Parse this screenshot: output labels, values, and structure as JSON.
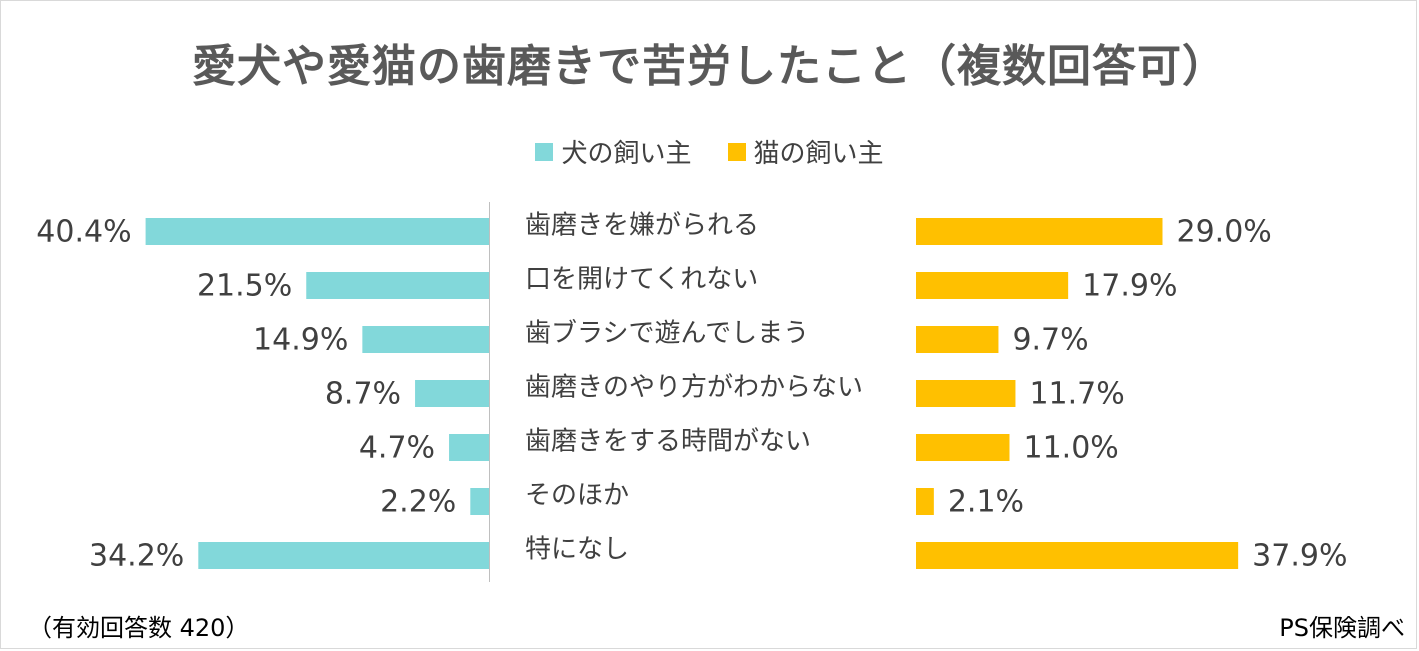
{
  "chart_data": {
    "type": "bar",
    "title": "愛犬や愛猫の歯磨きで苦労したこと（複数回答可）",
    "categories": [
      "歯磨きを嫌がられる",
      "口を開けてくれない",
      "歯ブラシで遊んでしまう",
      "歯磨きのやり方がわからない",
      "歯磨きをする時間がない",
      "そのほか",
      "特になし"
    ],
    "series": [
      {
        "name": "犬の飼い主",
        "color": "#82D8DA",
        "values": [
          40.4,
          21.5,
          14.9,
          8.7,
          4.7,
          2.2,
          34.2
        ],
        "labels": [
          "40.4%",
          "21.5%",
          "14.9%",
          "8.7%",
          "4.7%",
          "2.2%",
          "34.2%"
        ]
      },
      {
        "name": "猫の飼い主",
        "color": "#FFC000",
        "values": [
          29.0,
          17.9,
          9.7,
          11.7,
          11.0,
          2.1,
          37.9
        ],
        "labels": [
          "29.0%",
          "17.9%",
          "9.7%",
          "11.7%",
          "11.0%",
          "2.1%",
          "37.9%"
        ]
      }
    ],
    "legend": "top-center",
    "grid": false
  },
  "footnote": "（有効回答数 420）",
  "source": "PS保険調べ"
}
